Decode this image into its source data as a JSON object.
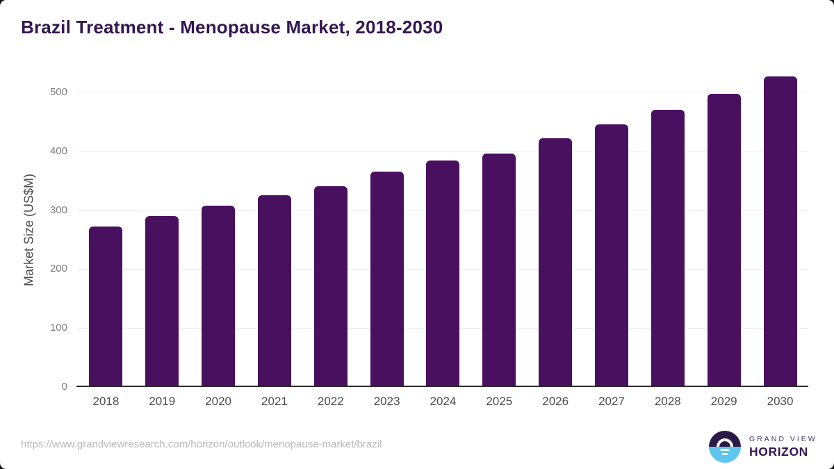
{
  "page": {
    "title": "Brazil Treatment - Menopause Market, 2018-2030"
  },
  "chart_data": {
    "type": "bar",
    "title": "Brazil Treatment - Menopause Market, 2018-2030",
    "xlabel": "",
    "ylabel": "Market Size (US$M)",
    "categories": [
      "2018",
      "2019",
      "2020",
      "2021",
      "2022",
      "2023",
      "2024",
      "2025",
      "2026",
      "2027",
      "2028",
      "2029",
      "2030"
    ],
    "values": [
      272,
      290,
      308,
      326,
      341,
      365,
      384,
      396,
      422,
      446,
      470,
      498,
      527
    ],
    "ylim": [
      0,
      533
    ],
    "yticks": [
      0,
      100,
      200,
      300,
      400,
      500
    ],
    "grid": true,
    "legend": false,
    "bar_color": "#4a1060"
  },
  "footer": {
    "source_url": "https://www.grandviewresearch.com/horizon/outlook/menopause-market/brazil",
    "logo": {
      "top_text": "GRAND VIEW",
      "bottom_text": "HORIZON"
    }
  },
  "colors": {
    "bar": "#4a1060",
    "title": "#331650",
    "logo_dark": "#2b1a47",
    "logo_blue": "#5ec6ee",
    "gridline": "#ececec",
    "axis_line": "#2b2b2b",
    "tick_text": "#7e7e7e",
    "url_text": "#b9b9b9"
  }
}
